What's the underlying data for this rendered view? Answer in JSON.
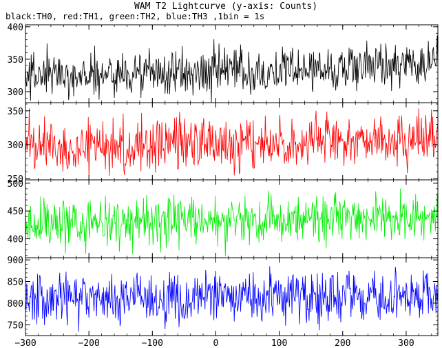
{
  "title": "WAM T2 Lightcurve (y-axis: Counts)",
  "subtitle": "black:TH0, red:TH1, green:TH2, blue:TH3 ,1bin = 1s",
  "chart_data": {
    "type": "line",
    "title": "WAM T2 Lightcurve (y-axis: Counts)",
    "subtitle": "black:TH0, red:TH1, green:TH2, blue:TH3 ,1bin = 1s",
    "xlim": [
      -300,
      350
    ],
    "x_ticks": [
      -300,
      -200,
      -100,
      0,
      100,
      200,
      300
    ],
    "bin_seconds": 1,
    "panels": [
      {
        "name": "TH0",
        "color": "#000000",
        "ylim": [
          283,
          403
        ],
        "y_ticks": [
          300,
          350,
          400
        ],
        "trend": [
          [
            -300,
            325
          ],
          [
            -100,
            328
          ],
          [
            0,
            330
          ],
          [
            100,
            332
          ],
          [
            200,
            337
          ],
          [
            300,
            345
          ],
          [
            350,
            348
          ]
        ],
        "spread": 18
      },
      {
        "name": "TH1",
        "color": "#ff0000",
        "ylim": [
          248,
          362
        ],
        "y_ticks": [
          250,
          300,
          350
        ],
        "trend": [
          [
            -300,
            298
          ],
          [
            0,
            301
          ],
          [
            200,
            304
          ],
          [
            350,
            307
          ]
        ],
        "spread": 20
      },
      {
        "name": "TH2",
        "color": "#00ee00",
        "ylim": [
          366,
          506
        ],
        "y_ticks": [
          400,
          450,
          500
        ],
        "trend": [
          [
            -300,
            428
          ],
          [
            0,
            432
          ],
          [
            350,
            437
          ]
        ],
        "spread": 22
      },
      {
        "name": "TH3",
        "color": "#0000ff",
        "ylim": [
          725,
          905
        ],
        "y_ticks": [
          750,
          800,
          850,
          900
        ],
        "trend": [
          [
            -300,
            810
          ],
          [
            0,
            812
          ],
          [
            350,
            818
          ]
        ],
        "spread": 30
      }
    ]
  }
}
